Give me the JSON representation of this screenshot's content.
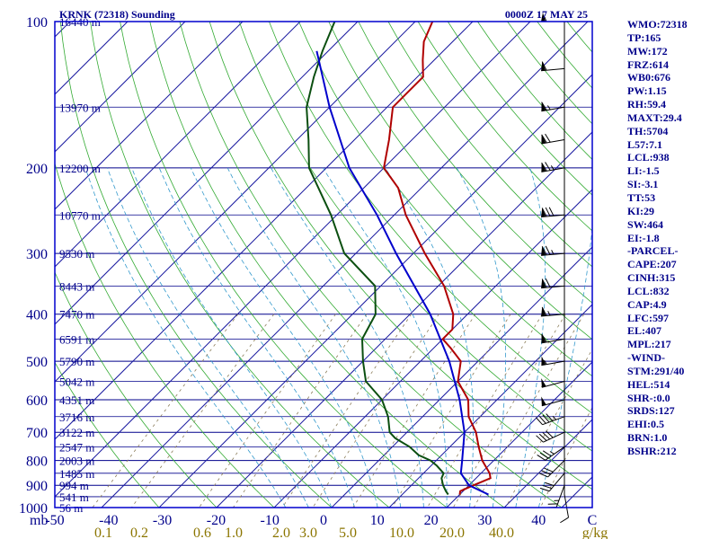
{
  "header": {
    "station": "KRNK (72318) Sounding",
    "time": "0000Z 17 MAY 25"
  },
  "colors": {
    "axes": "#00008b",
    "frame": "#0000cd",
    "isotherm": "#1a1aa0",
    "dry_adiabat": "#33aa33",
    "moist_adiabat": "#3399cc",
    "mixing_ratio": "#8b7d5a",
    "temperature": "#b00000",
    "dewpoint": "#0b4f10",
    "parcel": "#0000cc",
    "wind_barb": "#000000",
    "mixing_label": "#8b7500"
  },
  "chart_data": {
    "type": "line",
    "title": "KRNK (72318) Sounding",
    "subtitle": "0000Z 17 MAY 25",
    "y_scale": "log-pressure",
    "ylim_mb": [
      1000,
      100
    ],
    "xlim_c": [
      -50,
      50
    ],
    "skew": "45°",
    "y_unit": "mb",
    "x_unit": "C",
    "pressure_ticks": [
      "100",
      "200",
      "300",
      "400",
      "500",
      "600",
      "700",
      "800",
      "900",
      "1000"
    ],
    "temperature_ticks": [
      "-50",
      "-40",
      "-30",
      "-20",
      "-10",
      "0",
      "10",
      "20",
      "30",
      "40",
      "C"
    ],
    "mixing_ratio_ticks": [
      "0.1",
      "0.2",
      "0.6",
      "1.0",
      "2.0",
      "3.0",
      "5.0",
      "10.0",
      "20.0",
      "40.0",
      "g/kg"
    ],
    "height_labels": [
      {
        "p": 100,
        "text": "16440 m"
      },
      {
        "p": 150,
        "text": "13970 m"
      },
      {
        "p": 200,
        "text": "12200 m"
      },
      {
        "p": 250,
        "text": "10770 m"
      },
      {
        "p": 300,
        "text": "9530 m"
      },
      {
        "p": 350,
        "text": "8443 m"
      },
      {
        "p": 400,
        "text": "7470 m"
      },
      {
        "p": 450,
        "text": "6591 m"
      },
      {
        "p": 500,
        "text": "5790 m"
      },
      {
        "p": 550,
        "text": "5042 m"
      },
      {
        "p": 600,
        "text": "4351 m"
      },
      {
        "p": 650,
        "text": "3716 m"
      },
      {
        "p": 700,
        "text": "3122 m"
      },
      {
        "p": 750,
        "text": "2547 m"
      },
      {
        "p": 800,
        "text": "2003 m"
      },
      {
        "p": 850,
        "text": "1485 m"
      },
      {
        "p": 900,
        "text": "994 m"
      },
      {
        "p": 950,
        "text": "541 m"
      },
      {
        "p": 1000,
        "text": "56 m"
      }
    ],
    "series": [
      {
        "kind": "temperature",
        "points": [
          {
            "p": 940,
            "t": 20.0
          },
          {
            "p": 925,
            "t": 19.5
          },
          {
            "p": 900,
            "t": 20.8
          },
          {
            "p": 870,
            "t": 22.5
          },
          {
            "p": 850,
            "t": 21.5
          },
          {
            "p": 800,
            "t": 18.0
          },
          {
            "p": 750,
            "t": 15.0
          },
          {
            "p": 700,
            "t": 12.0
          },
          {
            "p": 650,
            "t": 8.0
          },
          {
            "p": 600,
            "t": 5.0
          },
          {
            "p": 550,
            "t": 0.0
          },
          {
            "p": 500,
            "t": -3.0
          },
          {
            "p": 470,
            "t": -7.0
          },
          {
            "p": 450,
            "t": -10.0
          },
          {
            "p": 430,
            "t": -10.0
          },
          {
            "p": 400,
            "t": -12.5
          },
          {
            "p": 350,
            "t": -19.0
          },
          {
            "p": 300,
            "t": -28.0
          },
          {
            "p": 250,
            "t": -38.0
          },
          {
            "p": 220,
            "t": -44.0
          },
          {
            "p": 200,
            "t": -50.0
          },
          {
            "p": 175,
            "t": -54.0
          },
          {
            "p": 150,
            "t": -59.0
          },
          {
            "p": 140,
            "t": -59.0
          },
          {
            "p": 130,
            "t": -59.0
          },
          {
            "p": 120,
            "t": -62.0
          },
          {
            "p": 110,
            "t": -65.0
          },
          {
            "p": 100,
            "t": -67.0
          }
        ]
      },
      {
        "kind": "dewpoint",
        "points": [
          {
            "p": 940,
            "t": 18.0
          },
          {
            "p": 925,
            "t": 17.0
          },
          {
            "p": 900,
            "t": 15.5
          },
          {
            "p": 870,
            "t": 14.0
          },
          {
            "p": 850,
            "t": 13.5
          },
          {
            "p": 820,
            "t": 11.0
          },
          {
            "p": 800,
            "t": 9.0
          },
          {
            "p": 780,
            "t": 6.0
          },
          {
            "p": 750,
            "t": 3.0
          },
          {
            "p": 720,
            "t": -1.0
          },
          {
            "p": 700,
            "t": -3.0
          },
          {
            "p": 650,
            "t": -6.0
          },
          {
            "p": 600,
            "t": -10.0
          },
          {
            "p": 550,
            "t": -16.0
          },
          {
            "p": 500,
            "t": -20.0
          },
          {
            "p": 450,
            "t": -24.0
          },
          {
            "p": 400,
            "t": -26.0
          },
          {
            "p": 350,
            "t": -31.0
          },
          {
            "p": 300,
            "t": -42.0
          },
          {
            "p": 250,
            "t": -51.0
          },
          {
            "p": 200,
            "t": -63.0
          },
          {
            "p": 175,
            "t": -68.0
          },
          {
            "p": 150,
            "t": -74.0
          },
          {
            "p": 130,
            "t": -78.0
          },
          {
            "p": 115,
            "t": -81.0
          },
          {
            "p": 100,
            "t": -84.0
          }
        ]
      },
      {
        "kind": "parcel",
        "points": [
          {
            "p": 940,
            "t": 25.0
          },
          {
            "p": 900,
            "t": 20.0
          },
          {
            "p": 850,
            "t": 16.5
          },
          {
            "p": 800,
            "t": 14.5
          },
          {
            "p": 700,
            "t": 10.0
          },
          {
            "p": 600,
            "t": 3.5
          },
          {
            "p": 500,
            "t": -5.0
          },
          {
            "p": 400,
            "t": -16.5
          },
          {
            "p": 300,
            "t": -33.0
          },
          {
            "p": 250,
            "t": -43.0
          },
          {
            "p": 200,
            "t": -56.0
          },
          {
            "p": 150,
            "t": -70.0
          },
          {
            "p": 115,
            "t": -82.0
          }
        ]
      }
    ],
    "mixing_ratios_gkg": [
      0.1,
      0.2,
      0.6,
      1.0,
      2.0,
      3.0,
      5.0,
      8.0,
      12.0,
      16.0,
      20.0,
      28.0,
      40.0
    ],
    "wind_barbs": [
      {
        "p": 940,
        "dir": 170,
        "spd": 10
      },
      {
        "p": 900,
        "dir": 200,
        "spd": 25
      },
      {
        "p": 850,
        "dir": 220,
        "spd": 30
      },
      {
        "p": 800,
        "dir": 225,
        "spd": 30
      },
      {
        "p": 750,
        "dir": 235,
        "spd": 35
      },
      {
        "p": 700,
        "dir": 245,
        "spd": 40
      },
      {
        "p": 650,
        "dir": 250,
        "spd": 45
      },
      {
        "p": 600,
        "dir": 255,
        "spd": 50
      },
      {
        "p": 550,
        "dir": 255,
        "spd": 50
      },
      {
        "p": 500,
        "dir": 260,
        "spd": 55
      },
      {
        "p": 450,
        "dir": 260,
        "spd": 60
      },
      {
        "p": 400,
        "dir": 265,
        "spd": 65
      },
      {
        "p": 350,
        "dir": 265,
        "spd": 70
      },
      {
        "p": 300,
        "dir": 265,
        "spd": 75
      },
      {
        "p": 250,
        "dir": 265,
        "spd": 80
      },
      {
        "p": 200,
        "dir": 260,
        "spd": 75
      },
      {
        "p": 175,
        "dir": 260,
        "spd": 70
      },
      {
        "p": 150,
        "dir": 260,
        "spd": 65
      },
      {
        "p": 125,
        "dir": 265,
        "spd": 60
      },
      {
        "p": 100,
        "dir": 270,
        "spd": 55
      }
    ]
  },
  "indices": [
    "WMO:72318",
    "TP:165",
    "MW:172",
    "FRZ:614",
    "WB0:676",
    "PW:1.15",
    "RH:59.4",
    "MAXT:29.4",
    "TH:5704",
    "L57:7.1",
    "LCL:938",
    "LI:-1.5",
    "SI:-3.1",
    "TT:53",
    "KI:29",
    "SW:464",
    "EI:-1.8",
    "-PARCEL-",
    "CAPE:207",
    "CINH:315",
    "LCL:832",
    "CAP:4.9",
    "LFC:597",
    "EL:407",
    "MPL:217",
    "-WIND-",
    "STM:291/40",
    "HEL:514",
    "SHR-:0.0",
    "SRDS:127",
    "EHI:0.5",
    "BRN:1.0",
    "BSHR:212"
  ]
}
